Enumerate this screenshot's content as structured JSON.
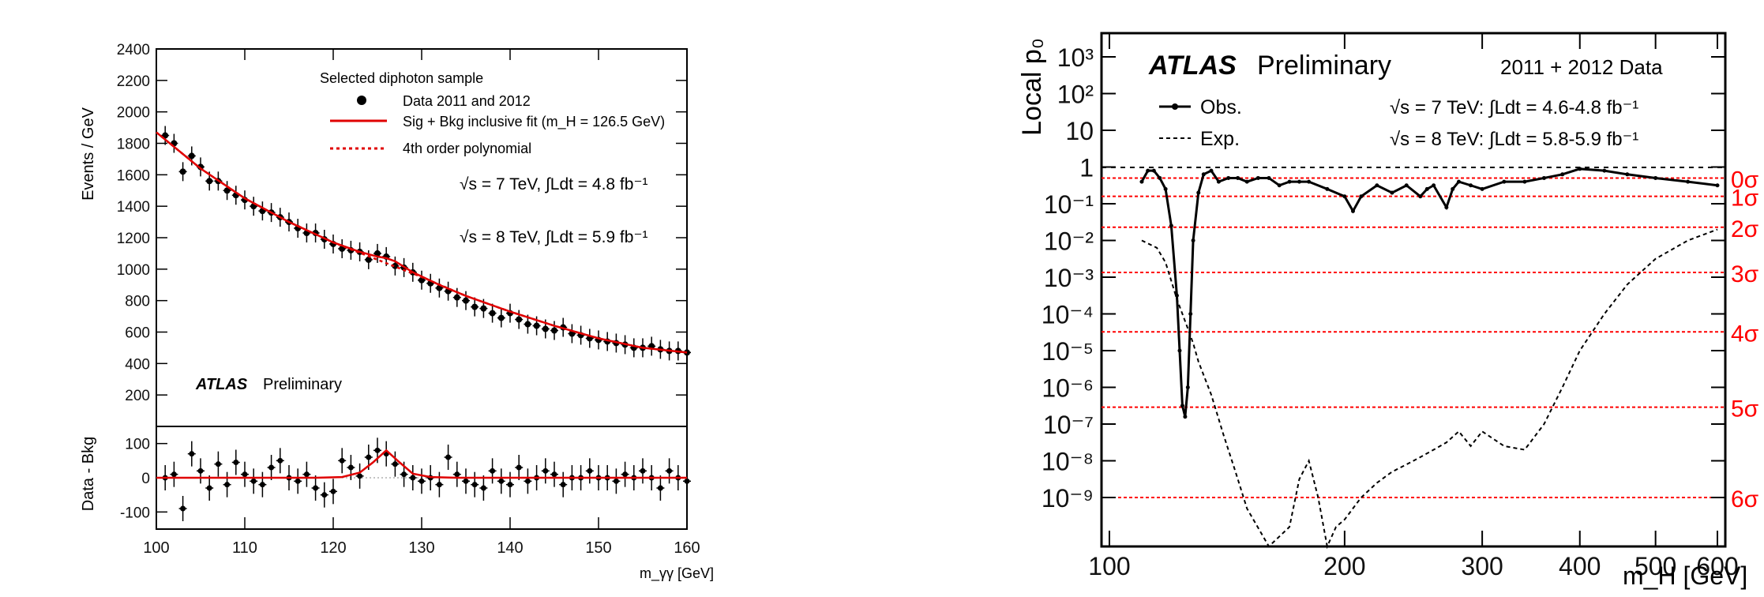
{
  "chart_data": [
    {
      "type": "scatter",
      "panel": "left-main",
      "ylabel": "Events / GeV",
      "xlabel": "m_γγ [GeV]",
      "ylim": [
        0,
        2400
      ],
      "xlim": [
        100,
        160
      ],
      "yticks": [
        200,
        400,
        600,
        800,
        1000,
        1200,
        1400,
        1600,
        1800,
        2000,
        2200,
        2400
      ],
      "xticks": [
        100,
        110,
        120,
        130,
        140,
        150,
        160
      ],
      "legend": {
        "header": "Selected diphoton sample",
        "data_label": "Data 2011 and 2012",
        "fit_label": "Sig + Bkg inclusive fit (m_H = 126.5 GeV)",
        "poly_label": "4th order polynomial",
        "placement": "top-right"
      },
      "lumi_7": "√s = 7 TeV, ∫Ldt = 4.8 fb⁻¹",
      "lumi_8": "√s = 8 TeV, ∫Ldt = 5.9 fb⁻¹",
      "atlas_label": "ATLAS",
      "prelim_label": "Preliminary",
      "series": [
        {
          "name": "Data 2011 and 2012",
          "x": [
            101,
            102,
            103,
            104,
            105,
            106,
            107,
            108,
            109,
            110,
            111,
            112,
            113,
            114,
            115,
            116,
            117,
            118,
            119,
            120,
            121,
            122,
            123,
            124,
            125,
            126,
            127,
            128,
            129,
            130,
            131,
            132,
            133,
            134,
            135,
            136,
            137,
            138,
            139,
            140,
            141,
            142,
            143,
            144,
            145,
            146,
            147,
            148,
            149,
            150,
            151,
            152,
            153,
            154,
            155,
            156,
            157,
            158,
            159,
            160
          ],
          "y": [
            1850,
            1800,
            1620,
            1720,
            1650,
            1560,
            1560,
            1500,
            1470,
            1440,
            1400,
            1370,
            1360,
            1330,
            1300,
            1260,
            1230,
            1230,
            1190,
            1160,
            1130,
            1120,
            1110,
            1060,
            1100,
            1080,
            1020,
            1010,
            980,
            930,
            910,
            880,
            860,
            820,
            800,
            760,
            750,
            720,
            690,
            720,
            680,
            650,
            640,
            620,
            610,
            630,
            590,
            580,
            560,
            550,
            540,
            530,
            520,
            500,
            500,
            510,
            490,
            480,
            480,
            470
          ]
        },
        {
          "name": "Sig + Bkg inclusive fit (m_H = 126.5 GeV)",
          "x": [
            100,
            105,
            110,
            115,
            120,
            123,
            125,
            126,
            127,
            129,
            132,
            135,
            140,
            145,
            150,
            155,
            160
          ],
          "y": [
            1870,
            1640,
            1450,
            1300,
            1170,
            1110,
            1080,
            1070,
            1050,
            980,
            900,
            830,
            730,
            640,
            560,
            500,
            470
          ]
        },
        {
          "name": "4th order polynomial",
          "x": [
            100,
            105,
            110,
            115,
            120,
            125,
            130,
            135,
            140,
            145,
            150,
            155,
            160
          ],
          "y": [
            1870,
            1640,
            1450,
            1300,
            1170,
            1060,
            950,
            830,
            730,
            640,
            560,
            500,
            470
          ]
        }
      ]
    },
    {
      "type": "scatter",
      "panel": "left-residual",
      "ylabel": "Data - Bkg",
      "ylim": [
        -150,
        150
      ],
      "yticks": [
        -100,
        0,
        100
      ],
      "series": [
        {
          "name": "Data - Bkg",
          "x": [
            101,
            102,
            103,
            104,
            105,
            106,
            107,
            108,
            109,
            110,
            111,
            112,
            113,
            114,
            115,
            116,
            117,
            118,
            119,
            120,
            121,
            122,
            123,
            124,
            125,
            126,
            127,
            128,
            129,
            130,
            131,
            132,
            133,
            134,
            135,
            136,
            137,
            138,
            139,
            140,
            141,
            142,
            143,
            144,
            145,
            146,
            147,
            148,
            149,
            150,
            151,
            152,
            153,
            154,
            155,
            156,
            157,
            158,
            159,
            160
          ],
          "y": [
            0,
            10,
            -90,
            70,
            20,
            -30,
            40,
            -20,
            45,
            10,
            -10,
            -20,
            30,
            50,
            0,
            -10,
            10,
            -30,
            -50,
            -40,
            50,
            30,
            5,
            60,
            80,
            70,
            40,
            10,
            0,
            -10,
            0,
            -20,
            60,
            10,
            -10,
            -20,
            -30,
            20,
            -10,
            -20,
            30,
            -10,
            0,
            20,
            10,
            -20,
            0,
            0,
            20,
            0,
            0,
            -10,
            10,
            0,
            20,
            0,
            -30,
            20,
            0,
            -10
          ]
        },
        {
          "name": "Sig + Bkg inclusive fit",
          "x": [
            100,
            118,
            121,
            123,
            124.5,
            126,
            127.5,
            129,
            131,
            134,
            160
          ],
          "y": [
            0,
            0,
            2,
            15,
            45,
            80,
            45,
            12,
            2,
            0,
            0
          ]
        }
      ]
    },
    {
      "type": "line",
      "panel": "right",
      "ylabel": "Local p₀",
      "xlabel": "m_H [GeV]",
      "yscale": "log",
      "xscale": "log",
      "xlim": [
        100,
        600
      ],
      "xticks": [
        100,
        200,
        300,
        400,
        500,
        600
      ],
      "yticks": [
        "10³",
        "10²",
        "10",
        "1",
        "10⁻¹",
        "10⁻²",
        "10⁻³",
        "10⁻⁴",
        "10⁻⁵",
        "10⁻⁶",
        "10⁻⁷",
        "10⁻⁸",
        "10⁻⁹"
      ],
      "atlas_label": "ATLAS",
      "prelim_label": "Preliminary",
      "data_label": "2011 + 2012 Data",
      "lumi_7": "√s = 7 TeV:  ∫Ldt = 4.6-4.8 fb⁻¹",
      "lumi_8": "√s = 8 TeV:  ∫Ldt = 5.8-5.9 fb⁻¹",
      "sigma_labels": [
        "0σ",
        "1σ",
        "2σ",
        "3σ",
        "4σ",
        "5σ",
        "6σ"
      ],
      "sigma_log10p": [
        -0.301,
        -0.799,
        -1.64,
        -2.87,
        -4.49,
        -6.54,
        -9.0
      ],
      "series": [
        {
          "name": "Obs.",
          "x": [
            110,
            112,
            114,
            116,
            118,
            120,
            122,
            123,
            124,
            125,
            126,
            127,
            128,
            130,
            132,
            135,
            138,
            142,
            146,
            150,
            155,
            160,
            165,
            170,
            175,
            180,
            190,
            200,
            205,
            210,
            220,
            230,
            240,
            250,
            255,
            260,
            270,
            275,
            280,
            290,
            300,
            320,
            340,
            360,
            380,
            400,
            430,
            460,
            500,
            550,
            600
          ],
          "log10p": [
            -0.4,
            -0.1,
            -0.1,
            -0.3,
            -0.6,
            -1.6,
            -3.5,
            -5.0,
            -6.5,
            -6.8,
            -6.0,
            -4.0,
            -2.0,
            -0.7,
            -0.2,
            -0.1,
            -0.4,
            -0.3,
            -0.3,
            -0.4,
            -0.3,
            -0.3,
            -0.5,
            -0.4,
            -0.4,
            -0.4,
            -0.6,
            -0.8,
            -1.2,
            -0.8,
            -0.5,
            -0.7,
            -0.5,
            -0.8,
            -0.6,
            -0.5,
            -1.1,
            -0.6,
            -0.4,
            -0.5,
            -0.6,
            -0.4,
            -0.4,
            -0.3,
            -0.2,
            -0.05,
            -0.1,
            -0.2,
            -0.3,
            -0.4,
            -0.5
          ]
        },
        {
          "name": "Exp.",
          "x": [
            110,
            115,
            118,
            120,
            122,
            124,
            126,
            128,
            130,
            135,
            140,
            145,
            150,
            160,
            170,
            175,
            180,
            185,
            190,
            195,
            200,
            210,
            220,
            230,
            240,
            250,
            260,
            270,
            280,
            290,
            300,
            320,
            340,
            360,
            380,
            400,
            430,
            460,
            500,
            550,
            600
          ],
          "log10p": [
            -2.0,
            -2.2,
            -2.6,
            -3.1,
            -3.6,
            -4.0,
            -4.4,
            -4.8,
            -5.3,
            -6.2,
            -7.3,
            -8.3,
            -9.3,
            -11,
            -9.8,
            -8.5,
            -8.0,
            -9.0,
            -10.5,
            -9.8,
            -9.6,
            -9.0,
            -8.6,
            -8.3,
            -8.1,
            -7.9,
            -7.7,
            -7.5,
            -7.2,
            -7.6,
            -7.2,
            -7.6,
            -7.7,
            -7.0,
            -6.0,
            -5.0,
            -4.0,
            -3.2,
            -2.5,
            -2.0,
            -1.7
          ]
        }
      ]
    }
  ]
}
